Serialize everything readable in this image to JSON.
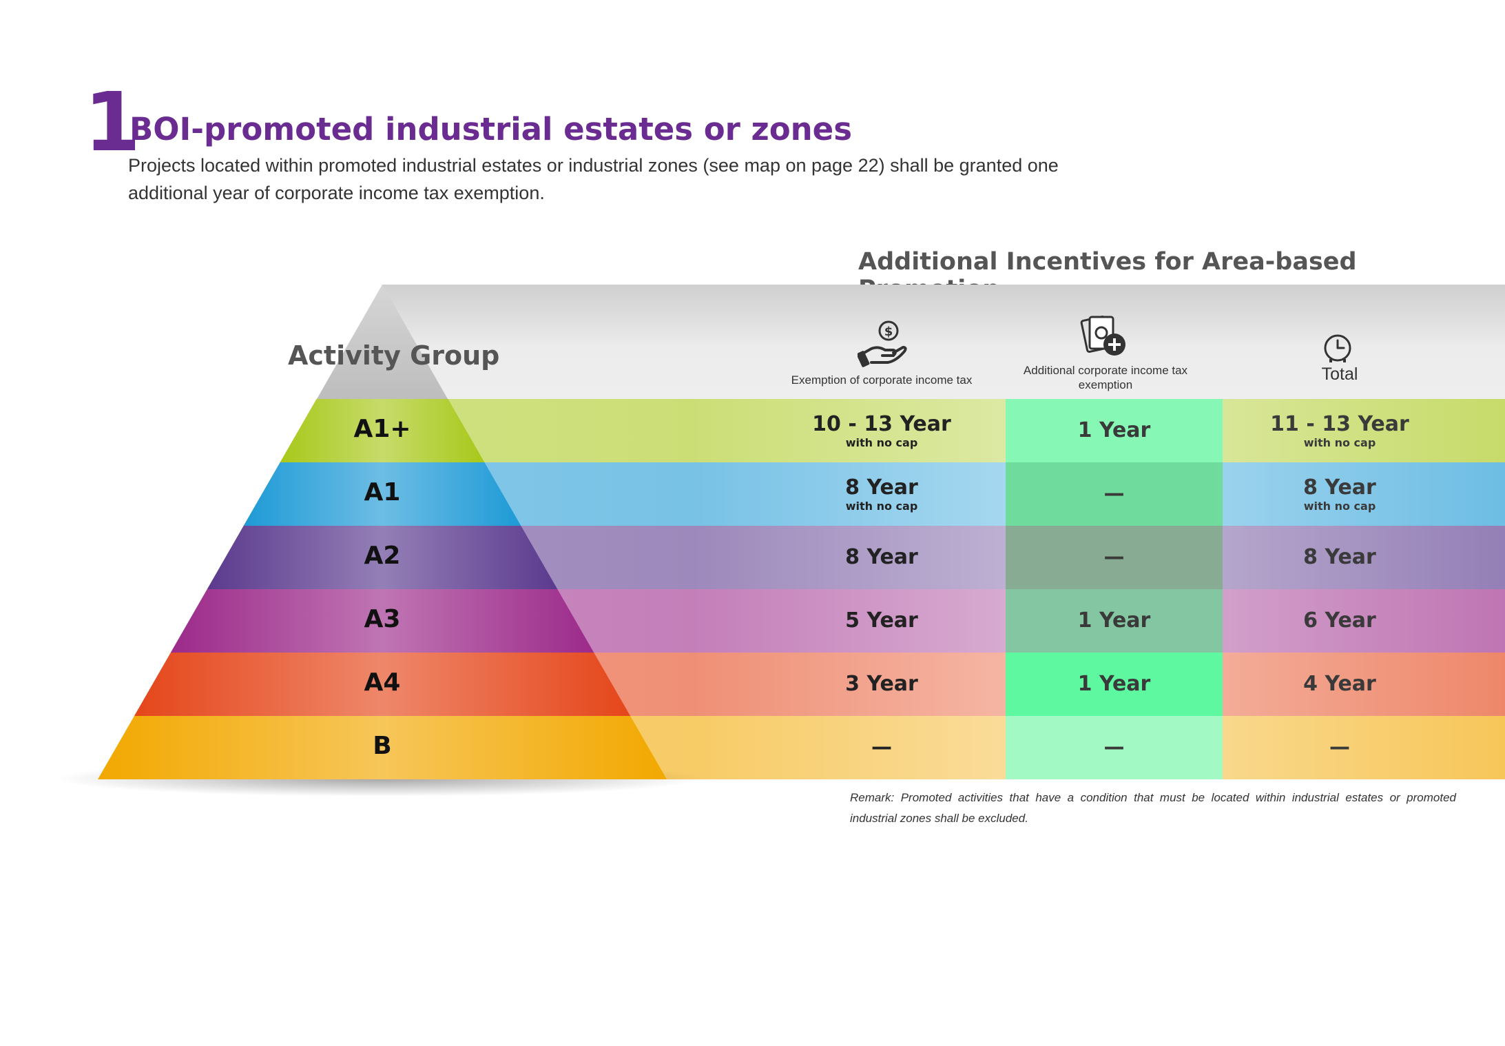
{
  "header": {
    "number": "1",
    "title": "BOI-promoted industrial estates or zones",
    "description": "Projects located within promoted industrial estates or industrial zones (see map on page 22) shall be granted one additional year of corporate income tax exemption."
  },
  "table": {
    "title": "Additional Incentives for Area-based Promotion",
    "activity_group_label": "Activity Group",
    "columns": [
      {
        "label": "Exemption of corporate income tax",
        "icon": "hand-coin-icon"
      },
      {
        "label": "Additional corporate income tax exemption",
        "icon": "money-plus-icon"
      },
      {
        "label": "Total",
        "icon": "clock-icon"
      }
    ],
    "rows": [
      {
        "group": "A1+",
        "color": "#a8c81a",
        "exemption": "10 - 13 Year",
        "exemption_note": "with no cap",
        "additional": "1 Year",
        "total": "11 - 13 Year",
        "total_note": "with no cap"
      },
      {
        "group": "A1",
        "color": "#1e9ad6",
        "exemption": "8 Year",
        "exemption_note": "with no cap",
        "additional": "—",
        "total": "8 Year",
        "total_note": "with no cap"
      },
      {
        "group": "A2",
        "color": "#5b3a8e",
        "exemption": "8 Year",
        "exemption_note": "",
        "additional": "—",
        "total": "8 Year",
        "total_note": ""
      },
      {
        "group": "A3",
        "color": "#9c2a8a",
        "exemption": "5 Year",
        "exemption_note": "",
        "additional": "1 Year",
        "total": "6 Year",
        "total_note": ""
      },
      {
        "group": "A4",
        "color": "#e5461a",
        "exemption": "3 Year",
        "exemption_note": "",
        "additional": "1 Year",
        "total": "4 Year",
        "total_note": ""
      },
      {
        "group": "B",
        "color": "#f2a800",
        "exemption": "—",
        "exemption_note": "",
        "additional": "—",
        "total": "—",
        "total_note": ""
      }
    ]
  },
  "remark": "Remark: Promoted activities that have a condition that must be located within industrial estates or promoted industrial zones shall be excluded."
}
